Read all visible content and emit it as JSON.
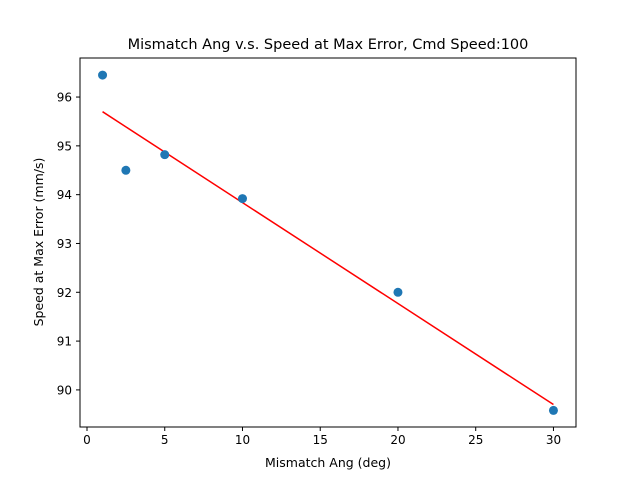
{
  "chart_data": {
    "type": "scatter",
    "title": "Mismatch Ang v.s. Speed at Max Error, Cmd Speed:100",
    "xlabel": "Mismatch Ang (deg)",
    "ylabel": "Speed at Max Error (mm/s)",
    "xlim": [
      -0.45,
      31.45
    ],
    "ylim": [
      89.24,
      96.8
    ],
    "xticks": [
      0,
      5,
      10,
      15,
      20,
      25,
      30
    ],
    "xtick_labels": [
      "0",
      "5",
      "10",
      "15",
      "20",
      "25",
      "30"
    ],
    "yticks": [
      90,
      91,
      92,
      93,
      94,
      95,
      96
    ],
    "ytick_labels": [
      "90",
      "91",
      "92",
      "93",
      "94",
      "95",
      "96"
    ],
    "grid": false,
    "series": [
      {
        "kind": "scatter",
        "color": "#1f77b4",
        "x": [
          1,
          2.5,
          5,
          10,
          20,
          30
        ],
        "y": [
          96.45,
          94.5,
          94.82,
          93.92,
          92.0,
          89.58
        ]
      },
      {
        "kind": "line",
        "color": "#ff0000",
        "x": [
          1,
          30
        ],
        "y": [
          95.7,
          89.7
        ]
      }
    ]
  }
}
